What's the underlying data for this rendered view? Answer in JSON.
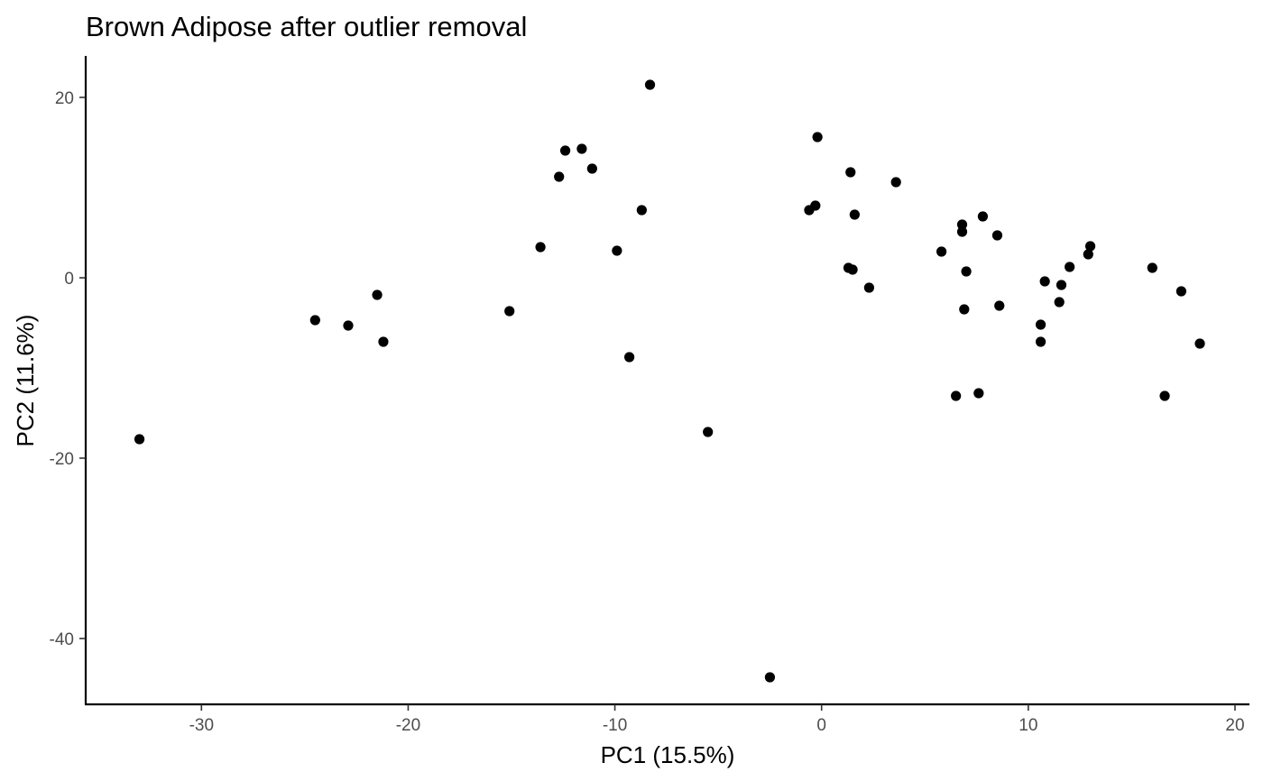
{
  "chart_data": {
    "type": "scatter",
    "title": "Brown Adipose after outlier removal",
    "xlabel": "PC1 (15.5%)",
    "ylabel": "PC2 (11.6%)",
    "xlim": [
      -35.6,
      20.7
    ],
    "ylim": [
      -47.3,
      24.6
    ],
    "xticks": [
      -30,
      -20,
      -10,
      0,
      10,
      20
    ],
    "xtick_labels": [
      "-30",
      "-20",
      "-10",
      "0",
      "10",
      "20"
    ],
    "yticks": [
      20,
      0,
      -20,
      -40
    ],
    "ytick_labels": [
      "20",
      "0",
      "-20",
      "-40"
    ],
    "grid": false,
    "legend": "none",
    "point_color": "#000000",
    "series": [
      {
        "points": [
          {
            "x": -33.0,
            "y": -17.9
          },
          {
            "x": -24.5,
            "y": -4.7
          },
          {
            "x": -22.9,
            "y": -5.3
          },
          {
            "x": -21.5,
            "y": -1.9
          },
          {
            "x": -21.2,
            "y": -7.1
          },
          {
            "x": -15.1,
            "y": -3.7
          },
          {
            "x": -13.6,
            "y": 3.4
          },
          {
            "x": -12.7,
            "y": 11.2
          },
          {
            "x": -12.4,
            "y": 14.1
          },
          {
            "x": -11.6,
            "y": 14.3
          },
          {
            "x": -11.1,
            "y": 12.1
          },
          {
            "x": -9.9,
            "y": 3.0
          },
          {
            "x": -9.3,
            "y": -8.8
          },
          {
            "x": -8.7,
            "y": 7.5
          },
          {
            "x": -8.3,
            "y": 21.4
          },
          {
            "x": -5.5,
            "y": -17.1
          },
          {
            "x": -2.5,
            "y": -44.3
          },
          {
            "x": -0.6,
            "y": 7.5
          },
          {
            "x": -0.3,
            "y": 8.0
          },
          {
            "x": -0.2,
            "y": 15.6
          },
          {
            "x": 1.3,
            "y": 1.1
          },
          {
            "x": 1.4,
            "y": 11.7
          },
          {
            "x": 1.5,
            "y": 0.9
          },
          {
            "x": 1.6,
            "y": 7.0
          },
          {
            "x": 2.3,
            "y": -1.1
          },
          {
            "x": 3.6,
            "y": 10.6
          },
          {
            "x": 5.8,
            "y": 2.9
          },
          {
            "x": 6.5,
            "y": -13.1
          },
          {
            "x": 6.8,
            "y": 5.1
          },
          {
            "x": 6.8,
            "y": 5.9
          },
          {
            "x": 6.9,
            "y": -3.5
          },
          {
            "x": 7.0,
            "y": 0.7
          },
          {
            "x": 7.6,
            "y": -12.8
          },
          {
            "x": 7.8,
            "y": 6.8
          },
          {
            "x": 8.5,
            "y": 4.7
          },
          {
            "x": 8.6,
            "y": -3.1
          },
          {
            "x": 10.6,
            "y": -7.1
          },
          {
            "x": 10.6,
            "y": -5.2
          },
          {
            "x": 10.8,
            "y": -0.4
          },
          {
            "x": 11.5,
            "y": -2.7
          },
          {
            "x": 11.6,
            "y": -0.8
          },
          {
            "x": 12.0,
            "y": 1.2
          },
          {
            "x": 12.9,
            "y": 2.6
          },
          {
            "x": 13.0,
            "y": 3.5
          },
          {
            "x": 16.0,
            "y": 1.1
          },
          {
            "x": 16.6,
            "y": -13.1
          },
          {
            "x": 17.4,
            "y": -1.5
          },
          {
            "x": 18.3,
            "y": -7.3
          }
        ]
      }
    ]
  }
}
